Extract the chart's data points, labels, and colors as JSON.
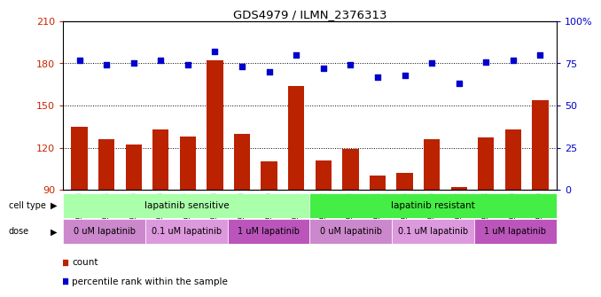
{
  "title": "GDS4979 / ILMN_2376313",
  "samples": [
    "GSM940873",
    "GSM940874",
    "GSM940875",
    "GSM940876",
    "GSM940877",
    "GSM940878",
    "GSM940879",
    "GSM940880",
    "GSM940881",
    "GSM940882",
    "GSM940883",
    "GSM940884",
    "GSM940885",
    "GSM940886",
    "GSM940887",
    "GSM940888",
    "GSM940889",
    "GSM940890"
  ],
  "bar_values": [
    135,
    126,
    122,
    133,
    128,
    182,
    130,
    110,
    164,
    111,
    119,
    100,
    102,
    126,
    92,
    127,
    133,
    154
  ],
  "percentile_values": [
    77,
    74,
    75,
    77,
    74,
    82,
    73,
    70,
    80,
    72,
    74,
    67,
    68,
    75,
    63,
    76,
    77,
    80
  ],
  "ylim_left": [
    90,
    210
  ],
  "ylim_right": [
    0,
    100
  ],
  "yticks_left": [
    90,
    120,
    150,
    180,
    210
  ],
  "yticks_right": [
    0,
    25,
    50,
    75,
    100
  ],
  "bar_color": "#bb2200",
  "dot_color": "#0000cc",
  "cell_type_groups": [
    {
      "label": "lapatinib sensitive",
      "start": 0,
      "end": 9,
      "color": "#aaffaa"
    },
    {
      "label": "lapatinib resistant",
      "start": 9,
      "end": 18,
      "color": "#44ee44"
    }
  ],
  "dose_groups": [
    {
      "label": "0 uM lapatinib",
      "start": 0,
      "end": 3,
      "color": "#dd88dd"
    },
    {
      "label": "0.1 uM lapatinib",
      "start": 3,
      "end": 6,
      "color": "#ee99ee"
    },
    {
      "label": "1 uM lapatinib",
      "start": 6,
      "end": 9,
      "color": "#cc66cc"
    },
    {
      "label": "0 uM lapatinib",
      "start": 9,
      "end": 12,
      "color": "#dd88dd"
    },
    {
      "label": "0.1 uM lapatinib",
      "start": 12,
      "end": 15,
      "color": "#ee99ee"
    },
    {
      "label": "1 uM lapatinib",
      "start": 15,
      "end": 18,
      "color": "#cc66cc"
    }
  ],
  "legend_bar_label": "count",
  "legend_dot_label": "percentile rank within the sample",
  "bar_color_legend": "#bb2200",
  "dot_color_legend": "#0000cc",
  "ylabel_left_color": "#cc2200",
  "ylabel_right_color": "#0000cc"
}
